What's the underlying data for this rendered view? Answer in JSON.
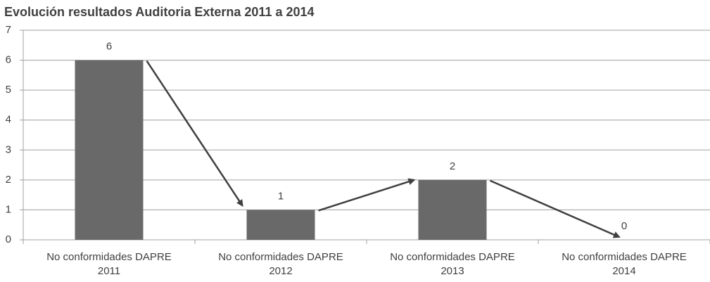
{
  "chart_data": {
    "type": "bar",
    "title": "Evolución resultados Auditoria Externa 2011 a 2014",
    "categories": [
      "No conformidades DAPRE 2011",
      "No conformidades DAPRE 2012",
      "No conformidades DAPRE 2013",
      "No conformidades DAPRE 2014"
    ],
    "values": [
      6,
      1,
      2,
      0
    ],
    "color": "#696969",
    "ylim": [
      0,
      7
    ],
    "yticks": [
      0,
      1,
      2,
      3,
      4,
      5,
      6,
      7
    ],
    "grid": true
  }
}
